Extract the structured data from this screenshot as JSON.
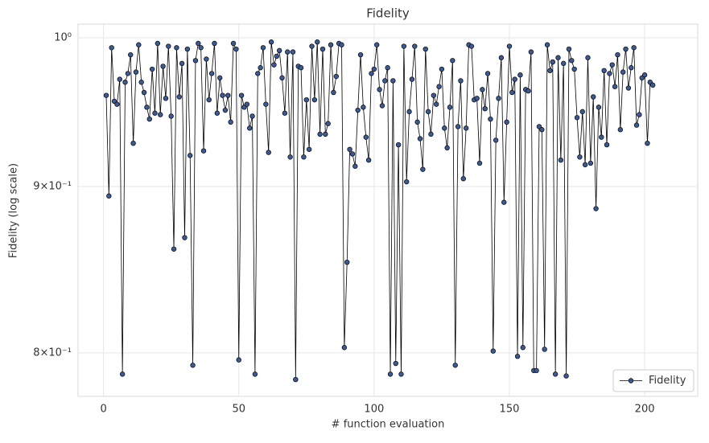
{
  "chart_data": {
    "type": "line",
    "title": "Fidelity",
    "xlabel": "# function evaluation",
    "ylabel": "Fidelity (log scale)",
    "x": [
      1,
      2,
      3,
      4,
      5,
      6,
      7,
      8,
      9,
      10,
      11,
      12,
      13,
      14,
      15,
      16,
      17,
      18,
      19,
      20,
      21,
      22,
      23,
      24,
      25,
      26,
      27,
      28,
      29,
      30,
      31,
      32,
      33,
      34,
      35,
      36,
      37,
      38,
      39,
      40,
      41,
      42,
      43,
      44,
      45,
      46,
      47,
      48,
      49,
      50,
      51,
      52,
      53,
      54,
      55,
      56,
      57,
      58,
      59,
      60,
      61,
      62,
      63,
      64,
      65,
      66,
      67,
      68,
      69,
      70,
      71,
      72,
      73,
      74,
      75,
      76,
      77,
      78,
      79,
      80,
      81,
      82,
      83,
      84,
      85,
      86,
      87,
      88,
      89,
      90,
      91,
      92,
      93,
      94,
      95,
      96,
      97,
      98,
      99,
      100,
      101,
      102,
      103,
      104,
      105,
      106,
      107,
      108,
      109,
      110,
      111,
      112,
      113,
      114,
      115,
      116,
      117,
      118,
      119,
      120,
      121,
      122,
      123,
      124,
      125,
      126,
      127,
      128,
      129,
      130,
      131,
      132,
      133,
      134,
      135,
      136,
      137,
      138,
      139,
      140,
      141,
      142,
      143,
      144,
      145,
      146,
      147,
      148,
      149,
      150,
      151,
      152,
      153,
      154,
      155,
      156,
      157,
      158,
      159,
      160,
      161,
      162,
      163,
      164,
      165,
      166,
      167,
      168,
      169,
      170,
      171,
      172,
      173,
      174,
      175,
      176,
      177,
      178,
      179,
      180,
      181,
      182,
      183,
      184,
      185,
      186,
      187,
      188,
      189,
      190,
      191,
      192,
      193,
      194,
      195,
      196,
      197,
      198,
      199,
      200,
      201,
      202,
      203
    ],
    "series": [
      {
        "name": "Fidelity",
        "color": "#3d5a98",
        "values": [
          0.96,
          0.894,
          0.993,
          0.956,
          0.954,
          0.971,
          0.788,
          0.969,
          0.975,
          0.988,
          0.928,
          0.976,
          0.995,
          0.969,
          0.962,
          0.952,
          0.944,
          0.978,
          0.948,
          0.996,
          0.947,
          0.98,
          0.958,
          0.994,
          0.946,
          0.861,
          0.993,
          0.959,
          0.982,
          0.868,
          0.992,
          0.92,
          0.793,
          0.984,
          0.996,
          0.993,
          0.923,
          0.985,
          0.957,
          0.975,
          0.996,
          0.948,
          0.972,
          0.96,
          0.95,
          0.96,
          0.942,
          0.996,
          0.992,
          0.796,
          0.96,
          0.952,
          0.954,
          0.938,
          0.946,
          0.788,
          0.975,
          0.979,
          0.993,
          0.954,
          0.922,
          0.997,
          0.981,
          0.987,
          0.991,
          0.972,
          0.948,
          0.99,
          0.919,
          0.99,
          0.785,
          0.98,
          0.979,
          0.919,
          0.957,
          0.924,
          0.994,
          0.957,
          0.997,
          0.934,
          0.992,
          0.934,
          0.941,
          0.995,
          0.962,
          0.973,
          0.996,
          0.995,
          0.803,
          0.853,
          0.924,
          0.921,
          0.913,
          0.95,
          0.988,
          0.952,
          0.932,
          0.917,
          0.975,
          0.978,
          0.995,
          0.964,
          0.953,
          0.97,
          0.979,
          0.788,
          0.97,
          0.794,
          0.927,
          0.788,
          0.994,
          0.903,
          0.949,
          0.971,
          0.994,
          0.942,
          0.931,
          0.911,
          0.992,
          0.949,
          0.934,
          0.96,
          0.954,
          0.966,
          0.978,
          0.938,
          0.925,
          0.952,
          0.984,
          0.793,
          0.939,
          0.97,
          0.905,
          0.938,
          0.995,
          0.994,
          0.957,
          0.958,
          0.915,
          0.964,
          0.951,
          0.975,
          0.944,
          0.801,
          0.93,
          0.958,
          0.986,
          0.89,
          0.942,
          0.994,
          0.962,
          0.971,
          0.798,
          0.974,
          0.803,
          0.964,
          0.963,
          0.99,
          0.79,
          0.79,
          0.939,
          0.937,
          0.802,
          0.995,
          0.977,
          0.983,
          0.788,
          0.986,
          0.917,
          0.982,
          0.787,
          0.992,
          0.984,
          0.978,
          0.945,
          0.919,
          0.949,
          0.914,
          0.986,
          0.915,
          0.959,
          0.886,
          0.952,
          0.932,
          0.977,
          0.927,
          0.975,
          0.981,
          0.966,
          0.988,
          0.937,
          0.976,
          0.992,
          0.965,
          0.979,
          0.993,
          0.94,
          0.947,
          0.972,
          0.974,
          0.928,
          0.969,
          0.967
        ]
      }
    ],
    "line_color": "#000000",
    "xlim": [
      -9.4,
      219.6
    ],
    "xticks": [
      0,
      50,
      100,
      150,
      200
    ],
    "ylim": [
      0.7757,
      1.0097
    ],
    "yscale": "log",
    "yticks": [
      {
        "value": 1,
        "label": "10⁰"
      },
      {
        "value": 0.9,
        "label": "9×10⁻¹"
      },
      {
        "value": 0.8,
        "label": "8×10⁻¹"
      }
    ],
    "grid": true,
    "legend": "lower right"
  }
}
